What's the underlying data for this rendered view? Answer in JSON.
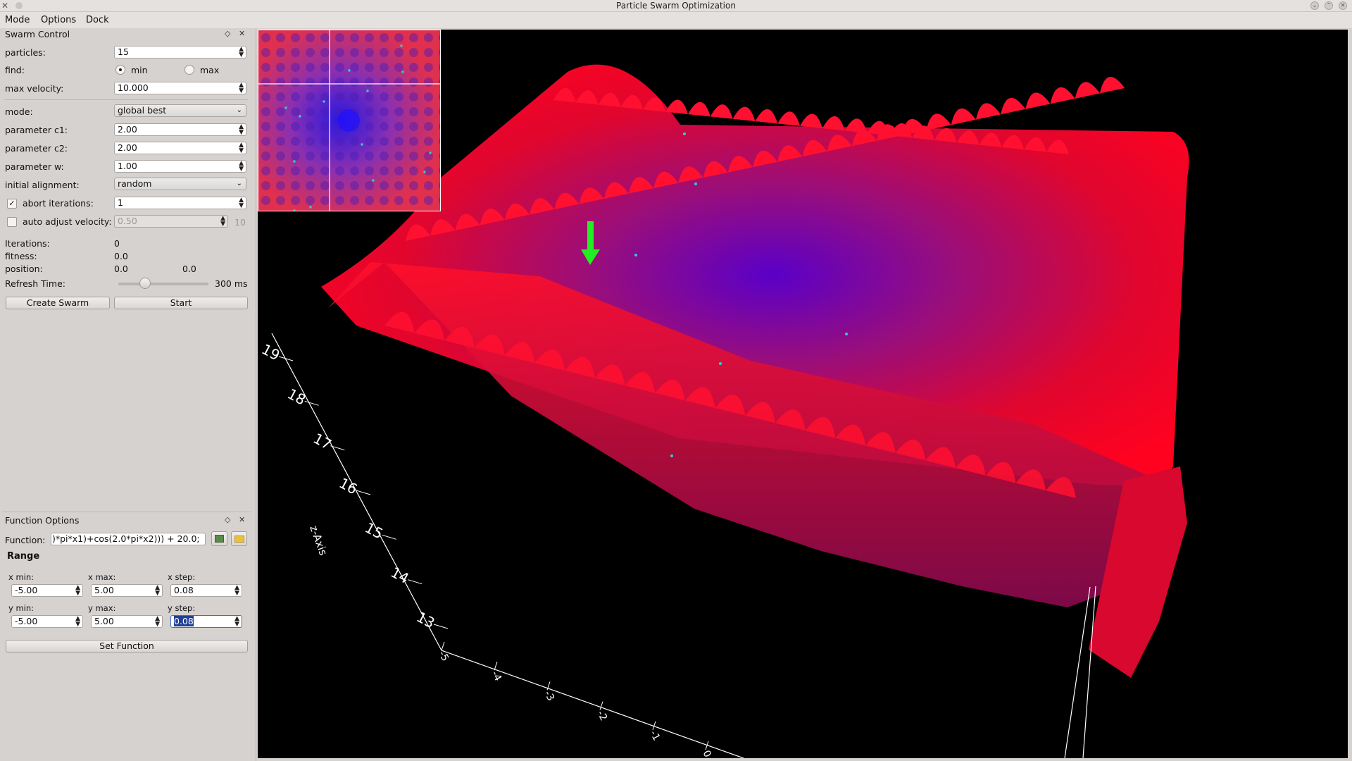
{
  "window": {
    "title": "Particle Swarm Optimization",
    "app_icon": "x-icon"
  },
  "menu": {
    "mode": "Mode",
    "options": "Options",
    "dock": "Dock"
  },
  "swarm_control": {
    "title": "Swarm Control",
    "particles_label": "particles:",
    "particles_value": "15",
    "find_label": "find:",
    "find_min": "min",
    "find_max": "max",
    "find_selected": "min",
    "max_velocity_label": "max velocity:",
    "max_velocity_value": "10.000",
    "mode_label": "mode:",
    "mode_value": "global best",
    "c1_label": "parameter c1:",
    "c1_value": "2.00",
    "c2_label": "parameter c2:",
    "c2_value": "2.00",
    "w_label": "parameter w:",
    "w_value": "1.00",
    "alignment_label": "initial alignment:",
    "alignment_value": "random",
    "abort_label": "abort iterations:",
    "abort_checked": true,
    "abort_value": "1",
    "auto_label": "auto adjust velocity:",
    "auto_checked": false,
    "auto_value": "0.50",
    "auto_suffix": "10",
    "iterations_label": "Iterations:",
    "iterations_value": "0",
    "fitness_label": "fitness:",
    "fitness_value": "0.0",
    "position_label": "position:",
    "position_x": "0.0",
    "position_y": "0.0",
    "refresh_label": "Refresh Time:",
    "refresh_value": "300 ms",
    "refresh_fraction": 0.3,
    "create_button": "Create Swarm",
    "start_button": "Start"
  },
  "function_options": {
    "title": "Function Options",
    "function_label": "Function:",
    "function_value": ")*pi*x1)+cos(2.0*pi*x2))) + 20.0;",
    "range_label": "Range",
    "xmin_label": "x min:",
    "xmin_value": "-5.00",
    "xmax_label": "x max:",
    "xmax_value": "5.00",
    "xstep_label": "x step:",
    "xstep_value": "0.08",
    "ymin_label": "y min:",
    "ymin_value": "-5.00",
    "ymax_label": "y max:",
    "ymax_value": "5.00",
    "ystep_label": "y step:",
    "ystep_value": "0.08",
    "set_button": "Set Function"
  },
  "plot": {
    "z_axis_label": "z-Axis",
    "z_ticks": [
      "19",
      "18",
      "17",
      "16",
      "15",
      "14",
      "13"
    ],
    "x_ticks": [
      "-5",
      "-4",
      "-3",
      "-2",
      "-1",
      "0"
    ],
    "surface_color_high": "#ff0022",
    "surface_color_low": "#5500cc",
    "particle_color": "#33cccc",
    "arrow_color": "#22ee22"
  }
}
